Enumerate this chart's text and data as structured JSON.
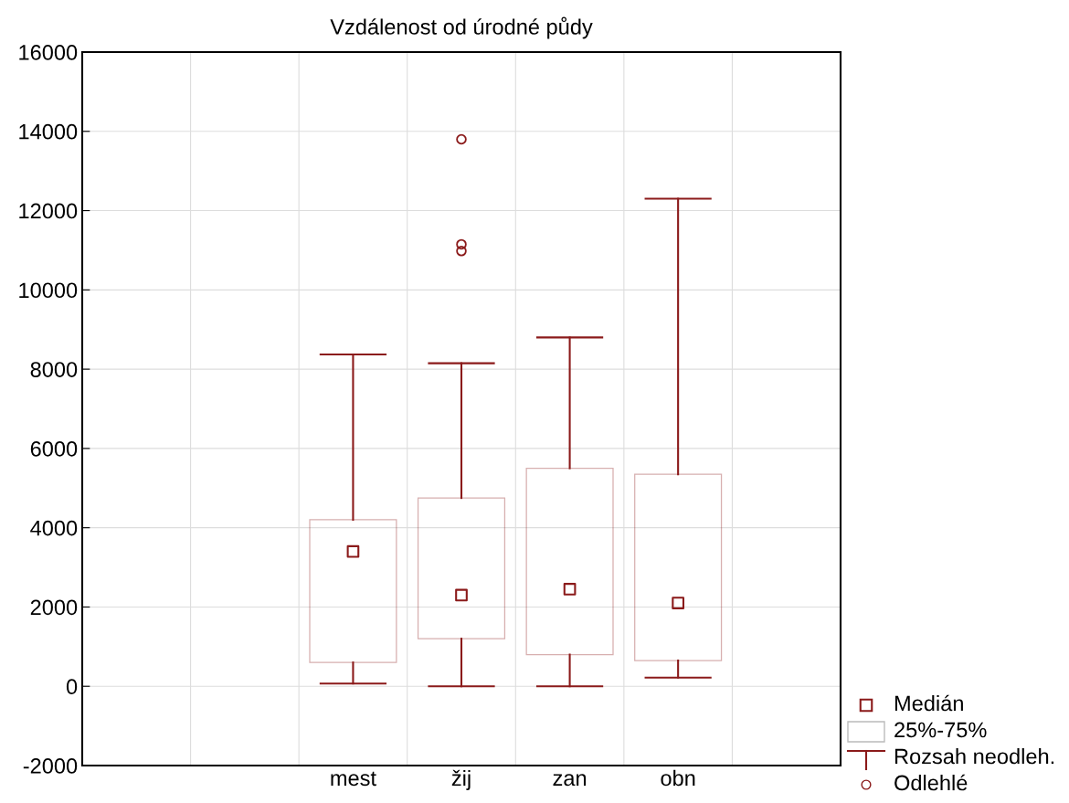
{
  "chart_data": {
    "type": "box",
    "title": "Vzdálenost od úrodné půdy",
    "categories": [
      null,
      null,
      "mest",
      "žij",
      "zan",
      "obn",
      null
    ],
    "series": [
      {
        "color": "#8b1a1a",
        "boxes": [
          null,
          null,
          {
            "low": 70,
            "q1": 600,
            "median": 3400,
            "q3": 4200,
            "high": 8370
          },
          {
            "low": 0,
            "q1": 1200,
            "median": 2300,
            "q3": 4750,
            "high": 8150,
            "outliers": [
              13800,
              11150,
              10980
            ]
          },
          {
            "low": 0,
            "q1": 800,
            "median": 2450,
            "q3": 5500,
            "high": 8800
          },
          {
            "low": 220,
            "q1": 650,
            "median": 2100,
            "q3": 5350,
            "high": 12300
          },
          null
        ]
      }
    ],
    "ylim": [
      -2000,
      16000
    ],
    "yticks": [
      -2000,
      0,
      2000,
      4000,
      6000,
      8000,
      10000,
      12000,
      14000,
      16000
    ],
    "grid": true,
    "marker": "square",
    "annotations": [
      "Medián",
      "25%-75%",
      "Rozsah neodleh.",
      "Odlehlé"
    ]
  }
}
